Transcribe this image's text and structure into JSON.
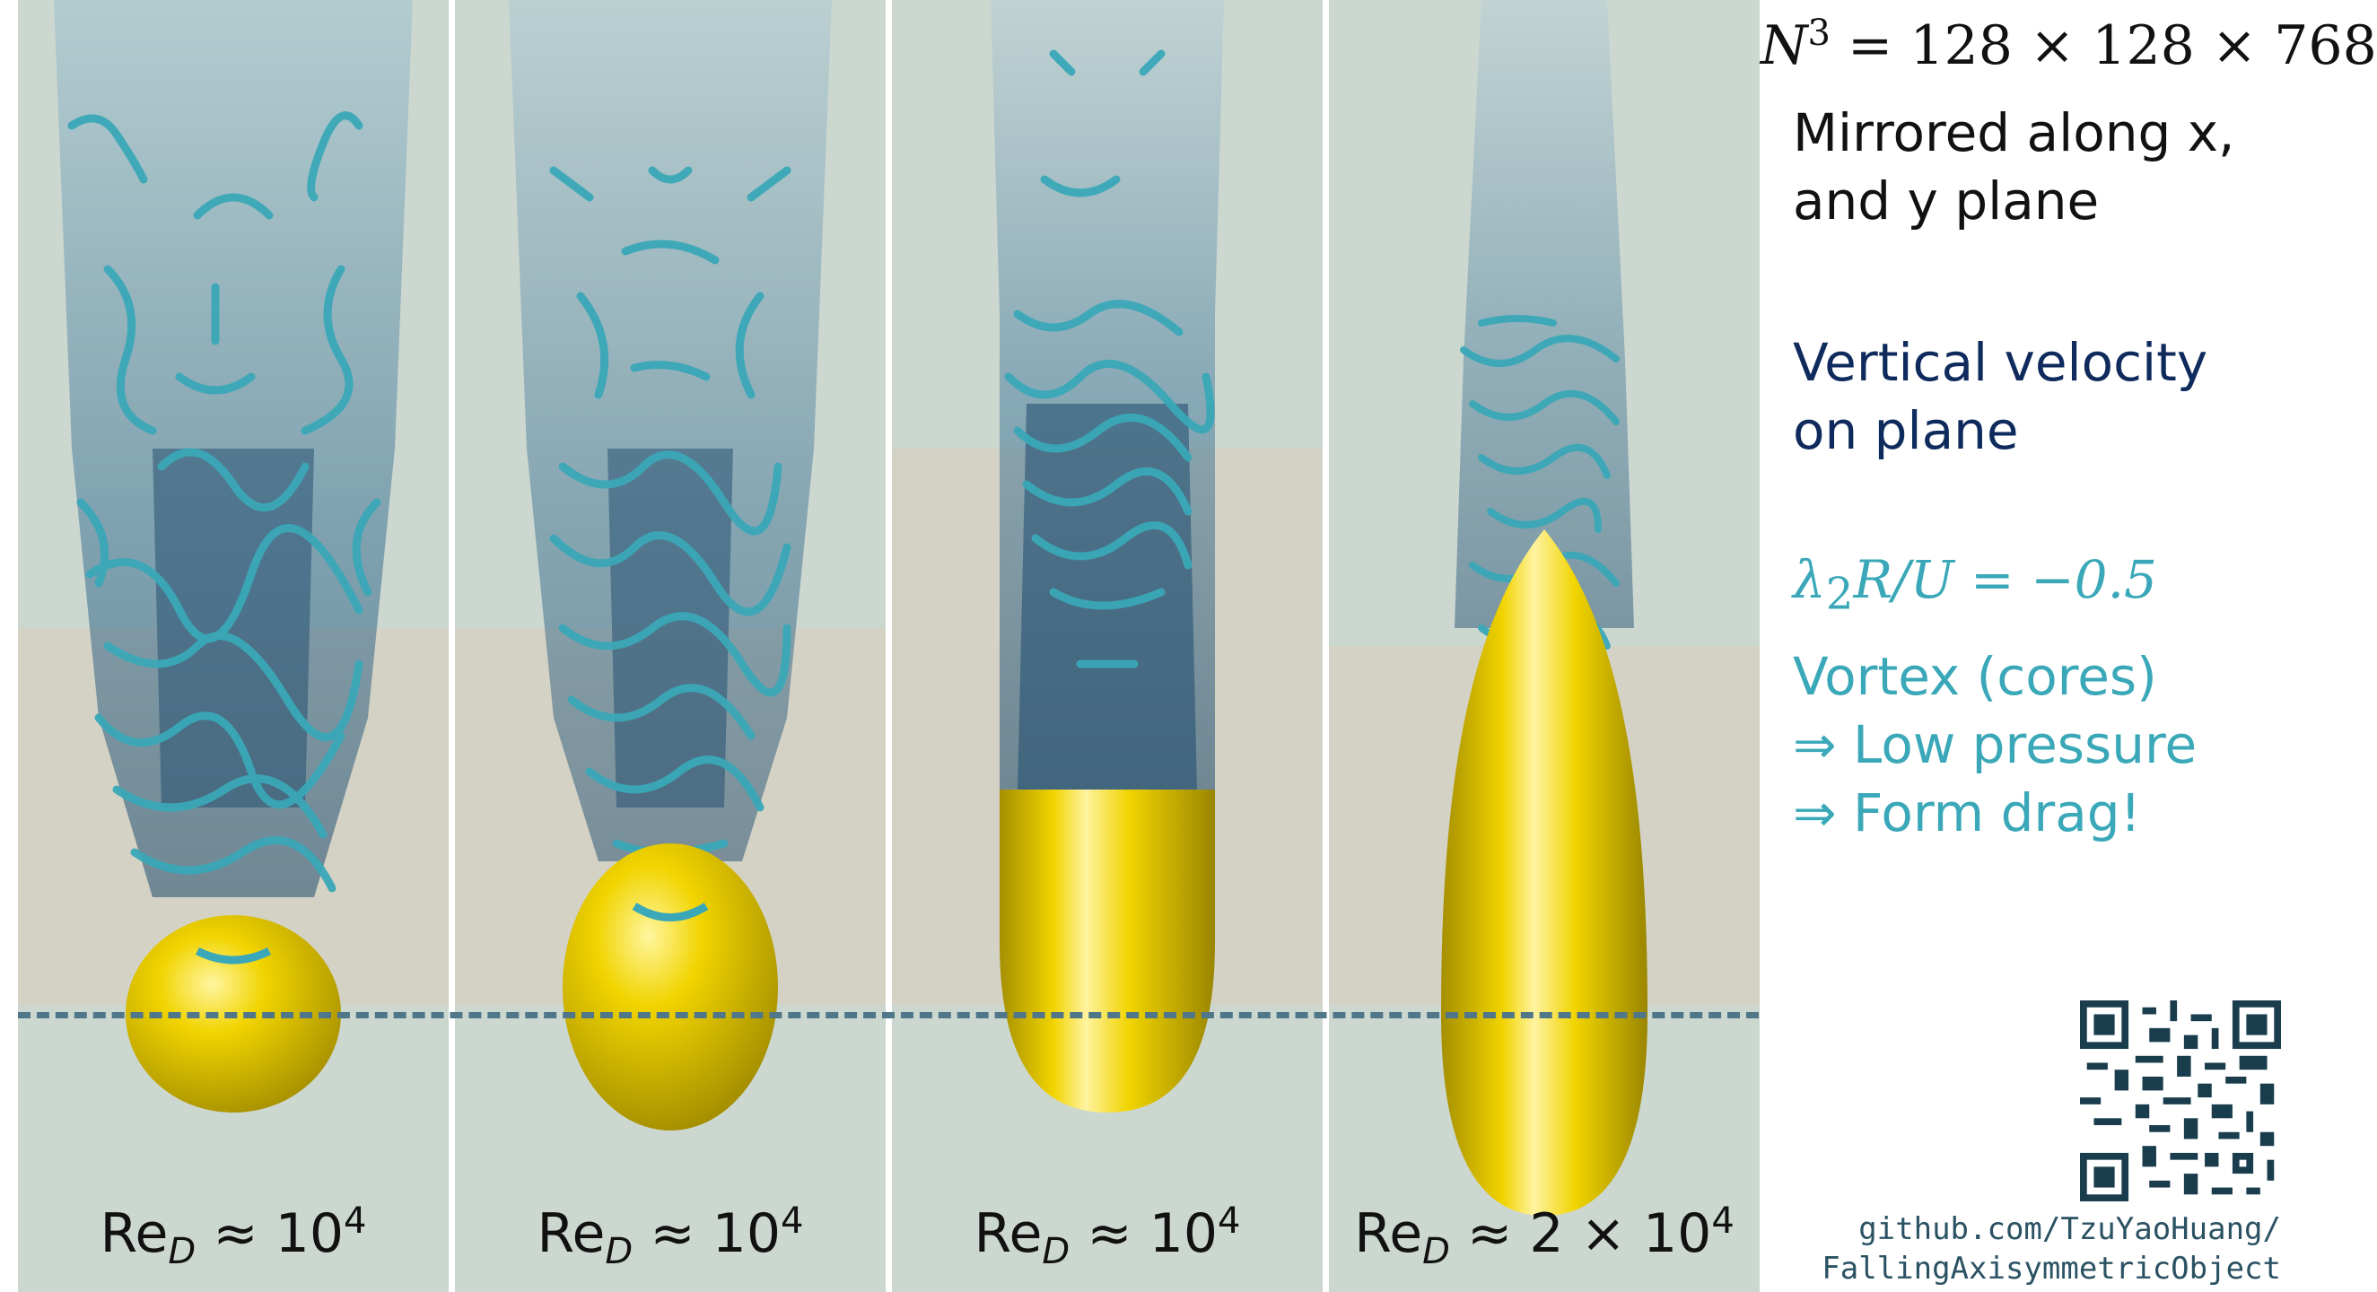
{
  "panels": [
    {
      "label_prefix": "Re",
      "label_sub": "D",
      "label_approx": "≈",
      "label_value": "10",
      "label_exp": "4",
      "shape": "sphere-ish"
    },
    {
      "label_prefix": "Re",
      "label_sub": "D",
      "label_approx": "≈",
      "label_value": "10",
      "label_exp": "4",
      "shape": "ellipsoid"
    },
    {
      "label_prefix": "Re",
      "label_sub": "D",
      "label_approx": "≈",
      "label_value": "10",
      "label_exp": "4",
      "shape": "capsule"
    },
    {
      "label_prefix": "Re",
      "label_sub": "D",
      "label_approx": "≈",
      "label_value": "2 × 10",
      "label_exp": "4",
      "shape": "teardrop"
    }
  ],
  "grid": {
    "n": "N",
    "exp": "3",
    "rest": " = 128 × 128 × 768"
  },
  "mirror_text_1": "Mirrored along x,",
  "mirror_text_2": "and y plane",
  "velocity_text_1": "Vertical velocity",
  "velocity_text_2": "on plane",
  "lambda": {
    "sym": "λ",
    "sub": "2",
    "rest": "R/U = −0.5"
  },
  "vortex_text_1": "Vortex (cores)",
  "vortex_text_2": "⇒ Low pressure",
  "vortex_text_3": "⇒ Form drag!",
  "github_1": "github.com/TzuYaoHuang/",
  "github_2": "FallingAxisymmetricObject",
  "colors": {
    "object": "#f1d400",
    "vortex": "#3aa8b8",
    "navy": "#0f2a5c",
    "dash": "#4f7689"
  }
}
